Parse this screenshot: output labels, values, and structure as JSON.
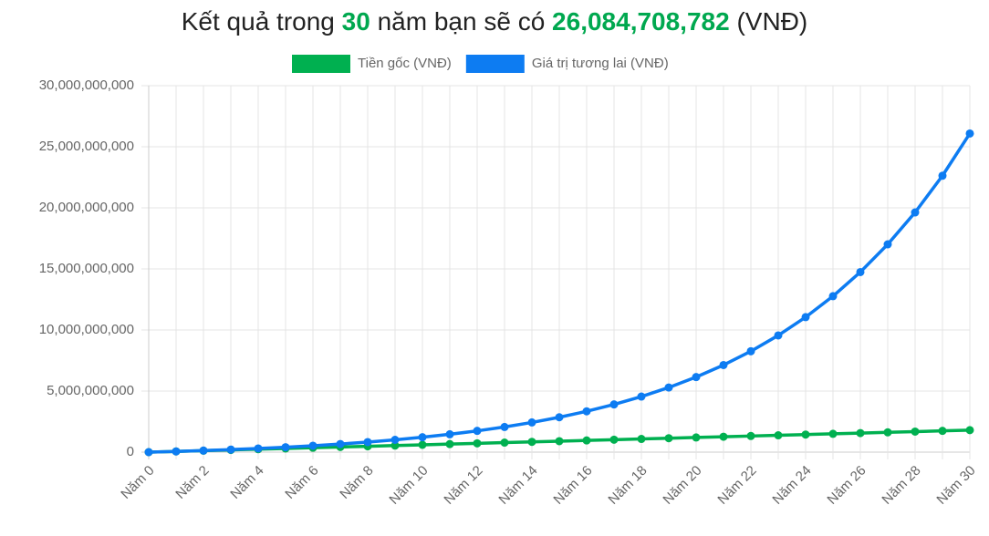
{
  "chart_data": {
    "type": "line",
    "title_parts": [
      "Kết quả trong",
      "30",
      "năm bạn sẽ có",
      "26,084,708,782",
      "(VNĐ)"
    ],
    "categories": [
      "Năm 0",
      null,
      "Năm 2",
      null,
      "Năm 4",
      null,
      "Năm 6",
      null,
      "Năm 8",
      null,
      "Năm 10",
      null,
      "Năm 12",
      null,
      "Năm 14",
      null,
      "Năm 16",
      null,
      "Năm 18",
      null,
      "Năm 20",
      null,
      "Năm 22",
      null,
      "Năm 24",
      null,
      "Năm 26",
      null,
      "Năm 28",
      null,
      "Năm 30"
    ],
    "series": [
      {
        "name": "Tiền gốc (VNĐ)",
        "color": "#00b050",
        "values": [
          0,
          60000000,
          120000000,
          180000000,
          240000000,
          300000000,
          360000000,
          420000000,
          480000000,
          540000000,
          600000000,
          660000000,
          720000000,
          780000000,
          840000000,
          900000000,
          960000000,
          1020000000,
          1080000000,
          1140000000,
          1200000000,
          1260000000,
          1320000000,
          1380000000,
          1440000000,
          1500000000,
          1560000000,
          1620000000,
          1680000000,
          1740000000,
          1800000000
        ]
      },
      {
        "name": "Giá trị tương lai (VNĐ)",
        "color": "#0d7cf2",
        "values": [
          0,
          60000000,
          129000000,
          208350000,
          299602500,
          404542875,
          525224306,
          664007952,
          823609145,
          1007150517,
          1218223094,
          1460956558,
          1740100042,
          2061115048,
          2430282306,
          2854824652,
          3343048349,
          3904505600,
          4550181444,
          5292708660,
          6146614956,
          7128607200,
          8257898280,
          9556583024,
          11050070476,
          12767581048,
          14742718204,
          17014125936,
          19626244828,
          22630181552,
          26084708782
        ]
      }
    ],
    "ylim": [
      0,
      30000000000
    ],
    "yticks": [
      0,
      {
        "value": 5000000000,
        "label": "5,000,000,000"
      },
      {
        "value": 10000000000,
        "label": "10,000,000,000"
      },
      {
        "value": 15000000000,
        "label": "15,000,000,000"
      },
      {
        "value": 20000000000,
        "label": "20,000,000,000"
      },
      {
        "value": 25000000000,
        "label": "25,000,000,000"
      },
      {
        "value": 30000000000,
        "label": "30,000,000,000"
      }
    ],
    "grid": true
  }
}
